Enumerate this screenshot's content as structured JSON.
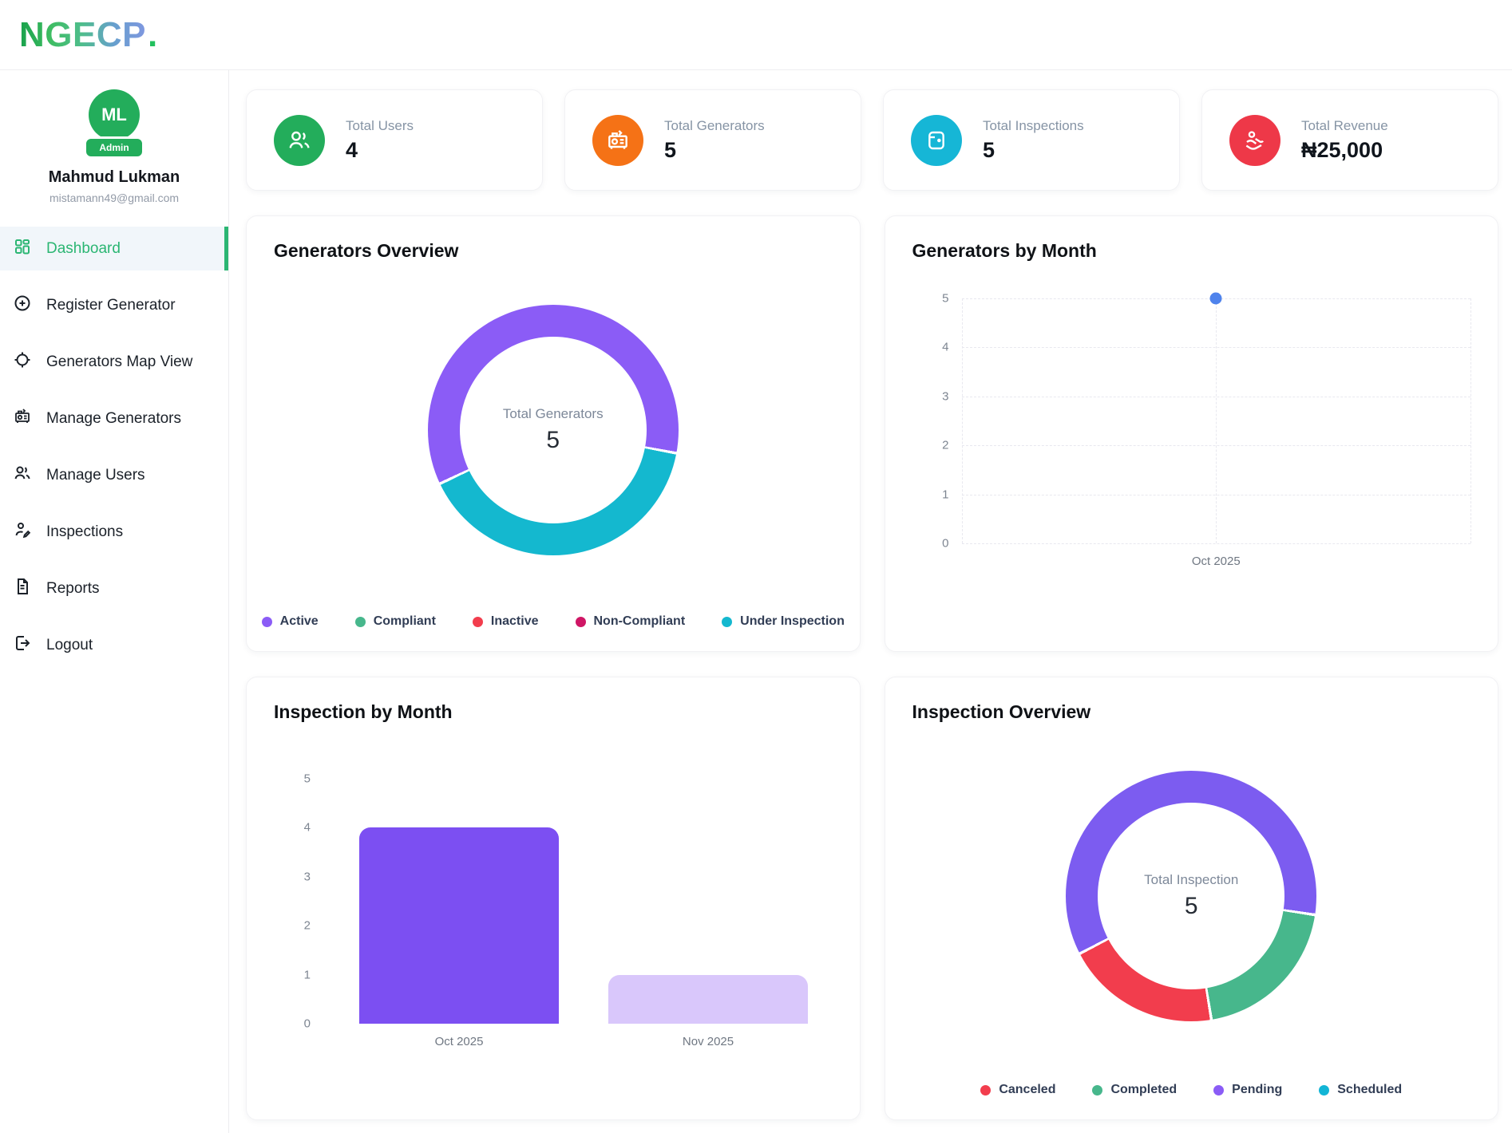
{
  "brand": {
    "logo_text": "NGECP",
    "logo_dot": ".",
    "gradient": [
      "#18a14b",
      "#3fbd63",
      "#4fbd8d",
      "#679fce",
      "#7f97e0"
    ],
    "dot_color": "#22c05e"
  },
  "theme": {
    "primary_green": "#23ad5b",
    "active_nav_green": "#2bb673"
  },
  "user": {
    "initials": "ML",
    "role_badge": "Admin",
    "name": "Mahmud Lukman",
    "email": "mistamann49@gmail.com"
  },
  "sidebar": {
    "items": [
      {
        "label": "Dashboard",
        "icon": "dashboard-icon",
        "active": true
      },
      {
        "label": "Register Generator",
        "icon": "plus-circle-icon"
      },
      {
        "label": "Generators Map View",
        "icon": "crosshair-icon"
      },
      {
        "label": "Manage Generators",
        "icon": "generator-icon"
      },
      {
        "label": "Manage Users",
        "icon": "users-icon"
      },
      {
        "label": "Inspections",
        "icon": "person-edit-icon"
      },
      {
        "label": "Reports",
        "icon": "document-icon"
      },
      {
        "label": "Logout",
        "icon": "logout-icon"
      }
    ]
  },
  "stats": [
    {
      "label": "Total Users",
      "value": "4",
      "icon": "users-icon",
      "color": "#23ad5b"
    },
    {
      "label": "Total Generators",
      "value": "5",
      "icon": "generator-icon",
      "color": "#f57216"
    },
    {
      "label": "Total Inspections",
      "value": "5",
      "icon": "wallet-icon",
      "color": "#16b6d6"
    },
    {
      "label": "Total Revenue",
      "value": "₦25,000",
      "icon": "hand-coin-icon",
      "color": "#ee3848"
    }
  ],
  "chart_data": [
    {
      "type": "pie",
      "variant": "doughnut",
      "title": "Generators Overview",
      "labels": [
        "Active",
        "Compliant",
        "Inactive",
        "Non-Compliant",
        "Under Inspection"
      ],
      "values": [
        3,
        0,
        0,
        0,
        2
      ],
      "colors": [
        "#8b5cf6",
        "#47b78c",
        "#f23d4d",
        "#cf1665",
        "#14b8cf"
      ],
      "center_label": "Total Generators",
      "center_value": 5,
      "legend_position": "bottom",
      "start_angle": 100,
      "segments": [
        {
          "label": "Under Inspection",
          "value": 2,
          "color": "#14b8cf"
        },
        {
          "label": "Active",
          "value": 3,
          "color": "#8b5cf6"
        }
      ]
    },
    {
      "type": "scatter",
      "title": "Generators by Month",
      "x_categories": [
        "Oct 2025"
      ],
      "series": [
        {
          "name": "Generators",
          "points": [
            {
              "x": "Oct 2025",
              "y": 5
            }
          ]
        }
      ],
      "ylim": [
        0,
        5
      ],
      "yticks": [
        0,
        1,
        2,
        3,
        4,
        5
      ],
      "grid": "dashed",
      "point_color": "#4f83ec"
    },
    {
      "type": "bar",
      "title": "Inspection by Month",
      "categories": [
        "Oct 2025",
        "Nov 2025"
      ],
      "values": [
        4,
        1
      ],
      "bar_colors": [
        "#7c4ff2",
        "#d9c7fb"
      ],
      "ylim": [
        0,
        5
      ],
      "yticks": [
        0,
        1,
        2,
        3,
        4,
        5
      ],
      "grid": false
    },
    {
      "type": "pie",
      "variant": "doughnut",
      "title": "Inspection Overview",
      "labels": [
        "Canceled",
        "Completed",
        "Pending",
        "Scheduled"
      ],
      "values": [
        1,
        1,
        3,
        0
      ],
      "colors": [
        "#f23d4d",
        "#47b78c",
        "#8b5cf6",
        "#12b5d6"
      ],
      "center_label": "Total Inspection",
      "center_value": 5,
      "legend_position": "bottom",
      "start_angle": 98,
      "segments": [
        {
          "label": "Completed",
          "value": 1,
          "color": "#47b78c"
        },
        {
          "label": "Canceled",
          "value": 1,
          "color": "#f23d4d"
        },
        {
          "label": "Pending",
          "value": 3,
          "color": "#7c5cf0"
        }
      ]
    }
  ]
}
